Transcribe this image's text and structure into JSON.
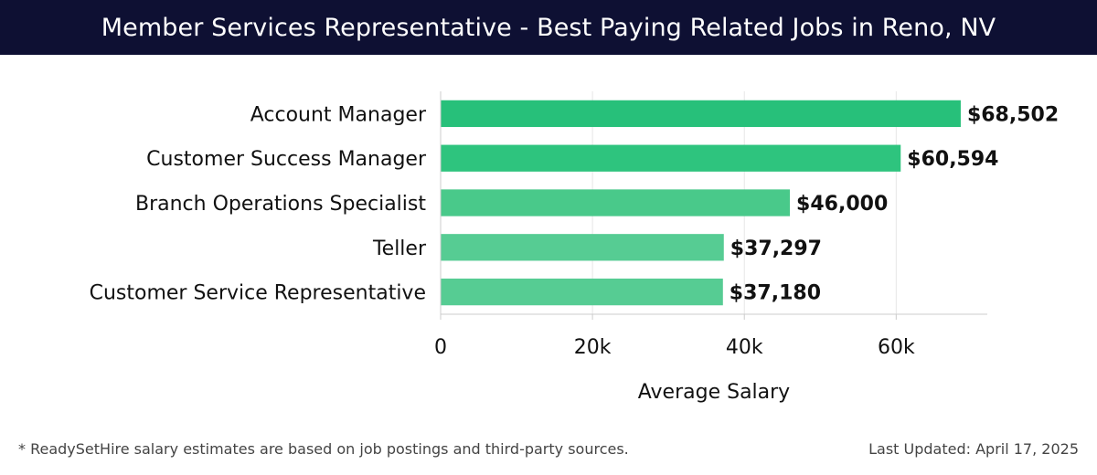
{
  "header": {
    "title": "Member Services Representative - Best Paying Related Jobs in Reno, NV"
  },
  "chart_data": {
    "type": "bar",
    "orientation": "horizontal",
    "title": "Member Services Representative - Best Paying Related Jobs in Reno, NV",
    "categories": [
      "Account Manager",
      "Customer Success Manager",
      "Branch Operations Specialist",
      "Teller",
      "Customer Service Representative"
    ],
    "values": [
      68502,
      60594,
      46000,
      37297,
      37180
    ],
    "value_labels": [
      "$68,502",
      "$60,594",
      "$46,000",
      "$37,297",
      "$37,180"
    ],
    "xlabel": "Average Salary",
    "ylabel": "",
    "xlim": [
      0,
      72000
    ],
    "xticks": [
      0,
      20000,
      40000,
      60000
    ],
    "xtick_labels": [
      "0",
      "20k",
      "40k",
      "60k"
    ],
    "grid": true,
    "colors": [
      "#27c07a",
      "#2ec47e",
      "#49c98a",
      "#56cc93",
      "#56cc93"
    ]
  },
  "footer": {
    "note": "* ReadySetHire salary estimates are based on job postings and third-party sources.",
    "updated": "Last Updated: April 17, 2025"
  }
}
